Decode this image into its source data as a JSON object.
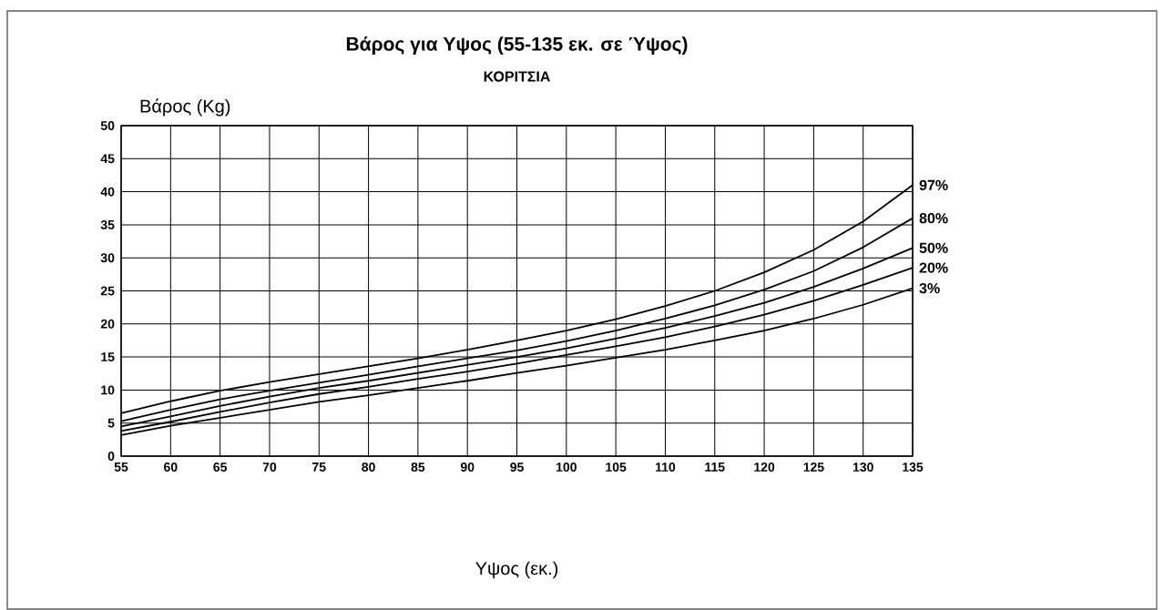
{
  "chart_data": {
    "type": "line",
    "title": "Βάρος για Υψος (55-135 εκ. σε Ύψος)",
    "subtitle": "ΚΟΡΙΤΣΙΑ",
    "xlabel": "Υψος (εκ.)",
    "ylabel": "Βάρος (Kg)",
    "x": [
      55,
      60,
      65,
      70,
      75,
      80,
      85,
      90,
      95,
      100,
      105,
      110,
      115,
      120,
      125,
      130,
      135
    ],
    "series": [
      {
        "name": "97%",
        "color": "#000000",
        "values": [
          6.5,
          8.3,
          9.9,
          11.2,
          12.4,
          13.6,
          14.8,
          16.1,
          17.5,
          19.0,
          20.7,
          22.7,
          25.0,
          27.8,
          31.2,
          35.5,
          41
        ]
      },
      {
        "name": "80%",
        "color": "#000000",
        "values": [
          5.3,
          7.0,
          8.6,
          9.9,
          11.1,
          12.3,
          13.6,
          14.8,
          16.0,
          17.4,
          19.0,
          20.8,
          22.8,
          25.2,
          28.0,
          31.6,
          36
        ]
      },
      {
        "name": "50%",
        "color": "#000000",
        "values": [
          4.5,
          6.0,
          7.6,
          9.0,
          10.3,
          11.4,
          12.6,
          13.8,
          15.0,
          16.3,
          17.8,
          19.4,
          21.2,
          23.2,
          25.6,
          28.4,
          31.5
        ]
      },
      {
        "name": "20%",
        "color": "#000000",
        "values": [
          3.8,
          5.2,
          6.7,
          8.1,
          9.4,
          10.5,
          11.7,
          12.8,
          14.0,
          15.3,
          16.6,
          18.0,
          19.6,
          21.4,
          23.5,
          25.9,
          28.5
        ]
      },
      {
        "name": "3%",
        "color": "#000000",
        "values": [
          3.2,
          4.6,
          5.8,
          7.0,
          8.2,
          9.2,
          10.3,
          11.4,
          12.6,
          13.7,
          14.9,
          16.1,
          17.5,
          19.0,
          20.8,
          22.9,
          25.4
        ]
      }
    ],
    "xlim": [
      55,
      135
    ],
    "ylim": [
      0,
      50
    ],
    "xticks": [
      55,
      60,
      65,
      70,
      75,
      80,
      85,
      90,
      95,
      100,
      105,
      110,
      115,
      120,
      125,
      130,
      135
    ],
    "yticks": [
      0,
      5,
      10,
      15,
      20,
      25,
      30,
      35,
      40,
      45,
      50
    ],
    "grid": true,
    "line_style": "solid",
    "marker": "none"
  }
}
